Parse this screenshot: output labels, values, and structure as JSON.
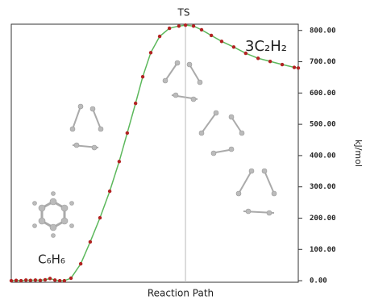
{
  "chart_data": {
    "type": "line",
    "y_label": "kJ/mol",
    "x_label": "Reaction Path",
    "annotations": [
      "TS",
      "3C₂H₂",
      "C₆H₆"
    ],
    "x": [
      0,
      1.7,
      3.4,
      5.1,
      6.7,
      8.4,
      10.1,
      11.8,
      13.5,
      15.2,
      16.9,
      18.5,
      20.8,
      24.2,
      27.5,
      30.9,
      34.3,
      37.6,
      40.4,
      43.3,
      45.8,
      48.6,
      51.7,
      55.1,
      58.4,
      60.7,
      63.5,
      66.3,
      69.7,
      73.3,
      77.5,
      81.7,
      86.0,
      90.2,
      94.4,
      98.6,
      100
    ],
    "series": [
      {
        "color": "#b22222",
        "line_color": "#5cb85c",
        "values": [
          0,
          1,
          0,
          2,
          1,
          2,
          1,
          3,
          7,
          2,
          0,
          0,
          8,
          54,
          124,
          201,
          286,
          381,
          472,
          567,
          652,
          729,
          781,
          807,
          814,
          817,
          814,
          802,
          784,
          765,
          747,
          727,
          711,
          701,
          691,
          682,
          680
        ]
      }
    ],
    "xlim": [
      0,
      100
    ],
    "ylim": [
      -5,
      820
    ],
    "yticks": [
      {
        "value": 0,
        "label": "0.00"
      },
      {
        "value": 100,
        "label": "100.00"
      },
      {
        "value": 200,
        "label": "200.00"
      },
      {
        "value": 300,
        "label": "300.00"
      },
      {
        "value": 400,
        "label": "400.00"
      },
      {
        "value": 500,
        "label": "500.00"
      },
      {
        "value": 600,
        "label": "600.00"
      },
      {
        "value": 700,
        "label": "700.00"
      },
      {
        "value": 800,
        "label": "800.00"
      }
    ],
    "y_axis_side": "right"
  }
}
